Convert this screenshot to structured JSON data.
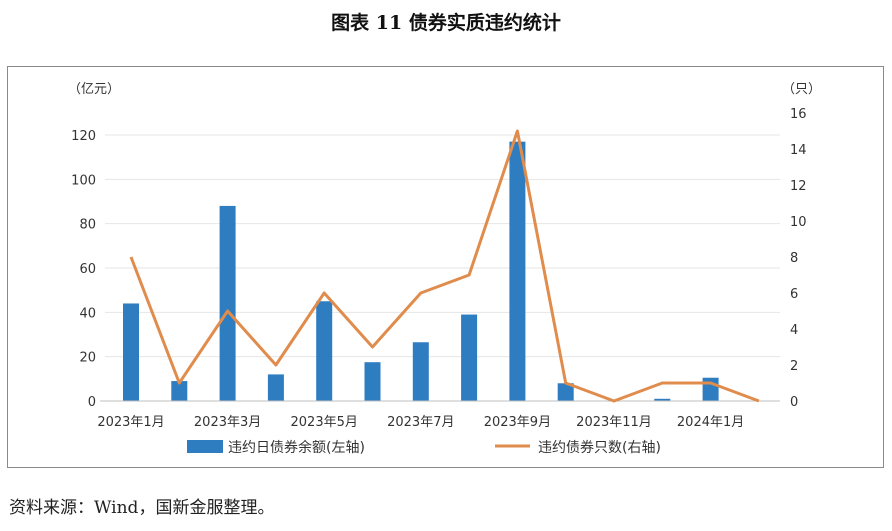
{
  "title": "图表 11  债券实质违约统计",
  "source": "资料来源：Wind，国新金服整理。",
  "colors": {
    "bar": "#2e7dc1",
    "line": "#e08c4c",
    "axis": "#bfbfbf",
    "grid": "#e6e6e6"
  },
  "chart_data": {
    "type": "bar+line",
    "x": [
      "2023年1月",
      "2023年2月",
      "2023年3月",
      "2023年4月",
      "2023年5月",
      "2023年6月",
      "2023年7月",
      "2023年8月",
      "2023年9月",
      "2023年10月",
      "2023年11月",
      "2023年12月",
      "2024年1月",
      "2024年2月"
    ],
    "x_tick_labels": [
      "2023年1月",
      "2023年3月",
      "2023年5月",
      "2023年7月",
      "2023年9月",
      "2023年11月",
      "2024年1月"
    ],
    "left_axis": {
      "unit": "（亿元）",
      "ylim": [
        0,
        120
      ],
      "ticks": [
        "0",
        "20",
        "40",
        "60",
        "80",
        "100",
        "120"
      ]
    },
    "right_axis": {
      "unit": "（只）",
      "ylim": [
        0,
        16
      ],
      "ticks": [
        "0",
        "2",
        "4",
        "6",
        "8",
        "10",
        "12",
        "14",
        "16"
      ]
    },
    "series": [
      {
        "name": "违约日债券余额(左轴)",
        "type": "bar",
        "axis": "left",
        "values": [
          44,
          9,
          88,
          12,
          45,
          17.5,
          26.5,
          39,
          117,
          8,
          0,
          1,
          10.5,
          0
        ]
      },
      {
        "name": "违约债券只数(右轴)",
        "type": "line",
        "axis": "right",
        "values": [
          8,
          1,
          5,
          2,
          6,
          3,
          6,
          7,
          15,
          1,
          0,
          1,
          1,
          0
        ]
      }
    ],
    "legend_position": "bottom",
    "grid": true
  }
}
